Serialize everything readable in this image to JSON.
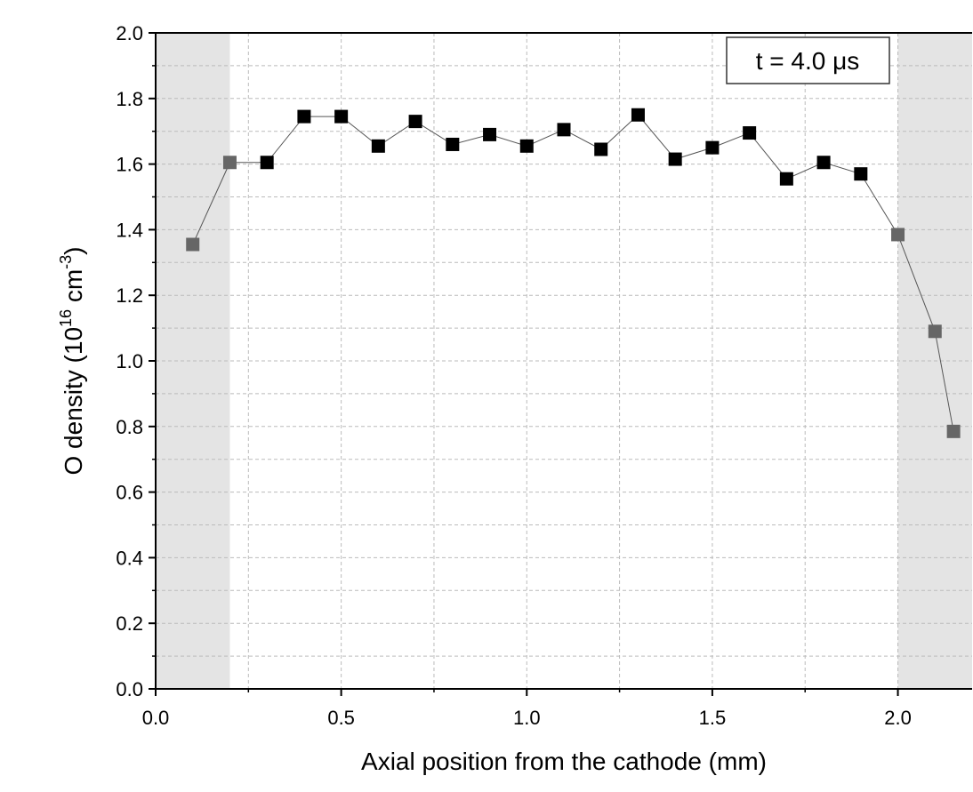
{
  "chart_data": {
    "type": "line",
    "xlabel": "Axial position from the cathode (mm)",
    "ylabel": {
      "text": "O density (10",
      "sup1": "16",
      "mid": " cm",
      "sup2": "-3",
      "end": ")"
    },
    "annotation": "t = 4.0 μs",
    "x": [
      0.1,
      0.2,
      0.3,
      0.4,
      0.5,
      0.6,
      0.7,
      0.8,
      0.9,
      1.0,
      1.1,
      1.2,
      1.3,
      1.4,
      1.5,
      1.6,
      1.7,
      1.8,
      1.9,
      2.0,
      2.1,
      2.15
    ],
    "values": [
      1.355,
      1.605,
      1.605,
      1.745,
      1.745,
      1.655,
      1.73,
      1.66,
      1.69,
      1.655,
      1.705,
      1.645,
      1.75,
      1.615,
      1.65,
      1.695,
      1.555,
      1.605,
      1.57,
      1.385,
      1.09,
      0.785
    ],
    "marker_colors": [
      "#666666",
      "#666666",
      "#000000",
      "#000000",
      "#000000",
      "#000000",
      "#000000",
      "#000000",
      "#000000",
      "#000000",
      "#000000",
      "#000000",
      "#000000",
      "#000000",
      "#000000",
      "#000000",
      "#000000",
      "#000000",
      "#000000",
      "#666666",
      "#666666",
      "#666666"
    ],
    "line_color": "#555555",
    "shaded_regions": [
      [
        0,
        0.2
      ],
      [
        2.0,
        2.2
      ]
    ],
    "shade_color": "#e4e4e4",
    "xlim": [
      0,
      2.2
    ],
    "ylim": [
      0,
      2.0
    ],
    "xticks": [
      {
        "value": 0,
        "label": "0.0"
      },
      0.5,
      {
        "value": 1,
        "label": "1.0"
      },
      1.5,
      {
        "value": 2,
        "label": "2.0"
      }
    ],
    "yticks": [
      {
        "value": 0,
        "label": "0.0"
      },
      0.2,
      0.4,
      0.6,
      0.8,
      {
        "value": 1,
        "label": "1.0"
      },
      1.2,
      1.4,
      1.6,
      1.8,
      {
        "value": 2,
        "label": "2.0"
      }
    ],
    "minor_xticks": [
      0.25,
      0.75,
      1.25,
      1.75
    ],
    "minor_yticks": [
      0.1,
      0.3,
      0.5,
      0.7,
      0.9,
      1.1,
      1.3,
      1.5,
      1.7,
      1.9
    ],
    "grid": true
  }
}
